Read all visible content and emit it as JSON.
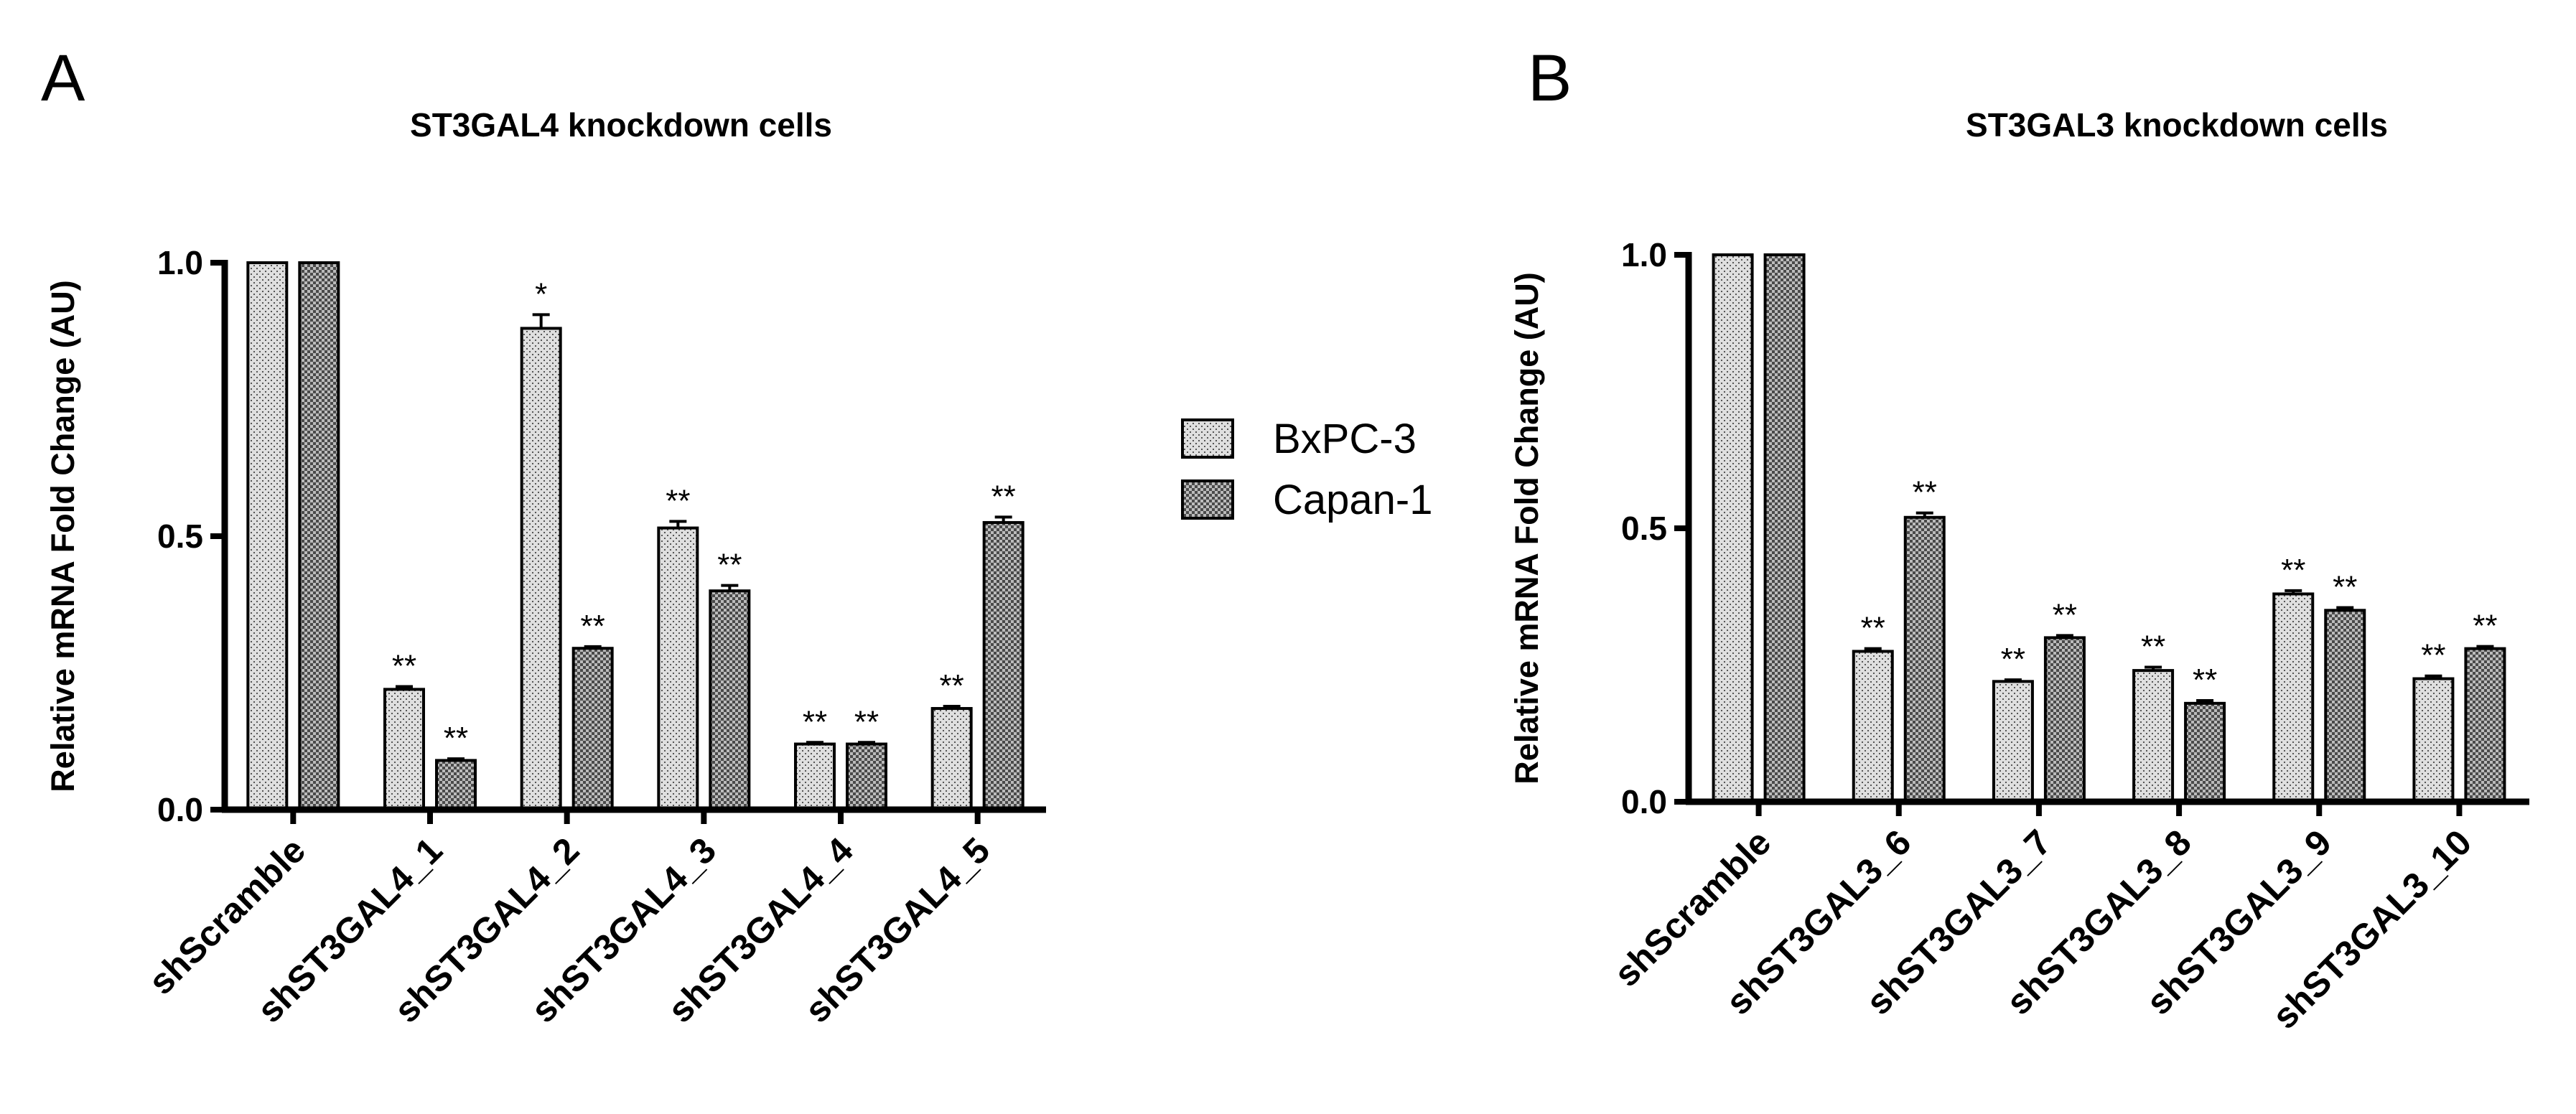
{
  "chart_data": [
    {
      "type": "bar",
      "panel": "A",
      "title": "ST3GAL4 knockdown cells",
      "y_label": "Relative mRNA Fold Change (AU)",
      "categories": [
        "shScramble",
        "shST3GAL4_1",
        "shST3GAL4_2",
        "shST3GAL4_3",
        "shST3GAL4_4",
        "shST3GAL4_5"
      ],
      "series": [
        {
          "name": "BxPC-3",
          "color": "#d4d4d4",
          "values": [
            1.0,
            0.22,
            0.88,
            0.515,
            0.12,
            0.185
          ],
          "errors": [
            0,
            0.005,
            0.025,
            0.012,
            0.003,
            0.004
          ],
          "annotations": [
            null,
            "**",
            "*",
            "**",
            "**",
            "**"
          ]
        },
        {
          "name": "Capan-1",
          "color": "#4a4a4a",
          "values": [
            1.0,
            0.09,
            0.295,
            0.4,
            0.12,
            0.525
          ],
          "errors": [
            0,
            0.003,
            0.003,
            0.01,
            0.003,
            0.01
          ],
          "annotations": [
            null,
            "**",
            "**",
            "**",
            "**",
            "**"
          ]
        }
      ],
      "ylim": [
        0,
        1
      ],
      "yticks": [
        {
          "value": 0,
          "label": "0.0"
        },
        0.5,
        {
          "value": 1,
          "label": "1.0"
        }
      ],
      "legend": "right"
    },
    {
      "type": "bar",
      "panel": "B",
      "title": "ST3GAL3 knockdown cells",
      "y_label": "Relative mRNA Fold Change (AU)",
      "categories": [
        "shScramble",
        "shST3GAL3_6",
        "shST3GAL3_7",
        "shST3GAL3_8",
        "shST3GAL3_9",
        "shST3GAL3_10"
      ],
      "series": [
        {
          "name": "BxPC-3",
          "color": "#d4d4d4",
          "values": [
            1.0,
            0.275,
            0.22,
            0.24,
            0.38,
            0.225
          ],
          "errors": [
            0,
            0.005,
            0.003,
            0.006,
            0.006,
            0.005
          ],
          "annotations": [
            null,
            "**",
            "**",
            "**",
            "**",
            "**"
          ]
        },
        {
          "name": "Capan-1",
          "color": "#4a4a4a",
          "values": [
            1.0,
            0.52,
            0.3,
            0.18,
            0.35,
            0.28
          ],
          "errors": [
            0,
            0.008,
            0.004,
            0.005,
            0.005,
            0.004
          ],
          "annotations": [
            null,
            "**",
            "**",
            "**",
            "**",
            "**"
          ]
        }
      ],
      "ylim": [
        0,
        1
      ],
      "yticks": [
        {
          "value": 0,
          "label": "0.0"
        },
        0.5,
        {
          "value": 1,
          "label": "1.0"
        }
      ]
    }
  ]
}
